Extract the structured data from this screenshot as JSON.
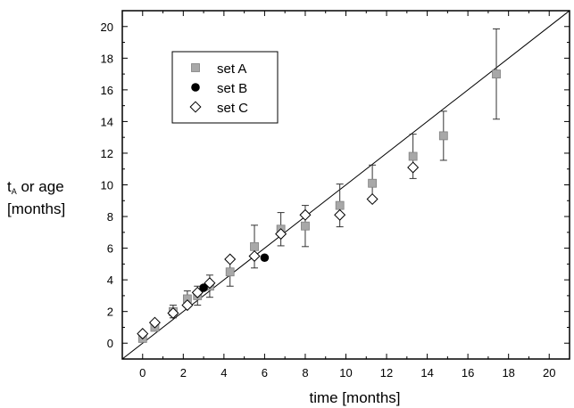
{
  "chart_data": {
    "type": "scatter",
    "xlabel": "time [months]",
    "ylabel": {
      "main": "t",
      "sub": "A",
      "rest": " or age",
      "line2": "[months]"
    },
    "xlim": [
      -1,
      21
    ],
    "ylim": [
      -1,
      21
    ],
    "xticks": [
      0,
      2,
      4,
      6,
      8,
      10,
      12,
      14,
      16,
      18,
      20
    ],
    "yticks": [
      0,
      2,
      4,
      6,
      8,
      10,
      12,
      14,
      16,
      18,
      20
    ],
    "legend_position": "top-left",
    "reference_line": {
      "slope": 1.0,
      "intercept": 0
    },
    "series": [
      {
        "name": "set A",
        "marker": "square",
        "color": "#a8a8a8",
        "points": [
          {
            "x": 0.0,
            "y": 0.3,
            "err": 0.2
          },
          {
            "x": 0.6,
            "y": 1.0,
            "err": 0.2
          },
          {
            "x": 1.5,
            "y": 2.0,
            "err": 0.4
          },
          {
            "x": 2.2,
            "y": 2.8,
            "err": 0.5
          },
          {
            "x": 2.7,
            "y": 3.0,
            "err": 0.6
          },
          {
            "x": 3.3,
            "y": 3.6,
            "err": 0.7
          },
          {
            "x": 4.3,
            "y": 4.5,
            "err": 0.9
          },
          {
            "x": 5.5,
            "y": 6.1,
            "err": 1.35
          },
          {
            "x": 6.8,
            "y": 7.2,
            "err": 1.05
          },
          {
            "x": 8.0,
            "y": 7.4,
            "err": 1.3
          },
          {
            "x": 9.7,
            "y": 8.7,
            "err": 1.35
          },
          {
            "x": 11.3,
            "y": 10.1,
            "err": 1.15
          },
          {
            "x": 13.3,
            "y": 11.8,
            "err": 1.4
          },
          {
            "x": 14.8,
            "y": 13.1,
            "err": 1.55
          },
          {
            "x": 17.4,
            "y": 17.0,
            "err": 2.85
          }
        ]
      },
      {
        "name": "set B",
        "marker": "circle",
        "color": "#000000",
        "points": [
          {
            "x": 3.0,
            "y": 3.5
          },
          {
            "x": 6.0,
            "y": 5.4
          }
        ]
      },
      {
        "name": "set C",
        "marker": "diamond",
        "color": "#ffffff",
        "points": [
          {
            "x": 0.0,
            "y": 0.6
          },
          {
            "x": 0.6,
            "y": 1.3
          },
          {
            "x": 1.5,
            "y": 1.9
          },
          {
            "x": 2.2,
            "y": 2.4
          },
          {
            "x": 2.7,
            "y": 3.2
          },
          {
            "x": 3.3,
            "y": 3.8
          },
          {
            "x": 4.3,
            "y": 5.3
          },
          {
            "x": 5.5,
            "y": 5.5
          },
          {
            "x": 6.8,
            "y": 6.9
          },
          {
            "x": 8.0,
            "y": 8.1
          },
          {
            "x": 9.7,
            "y": 8.1
          },
          {
            "x": 11.3,
            "y": 9.1
          },
          {
            "x": 13.3,
            "y": 11.1
          }
        ]
      }
    ]
  }
}
